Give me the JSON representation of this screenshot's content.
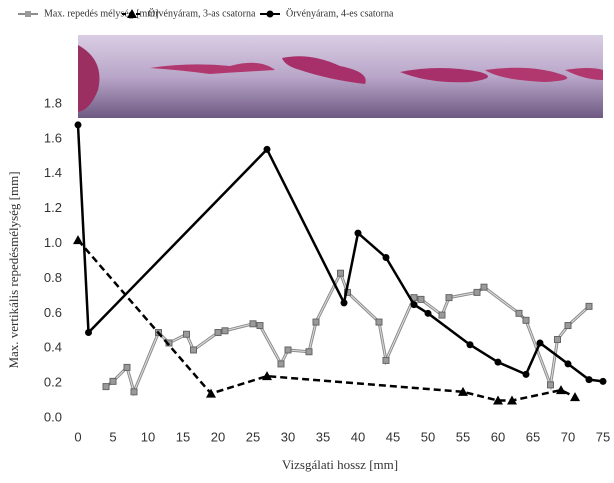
{
  "chart_data": {
    "type": "line",
    "xlabel": "Vizsgálati hossz  [mm]",
    "ylabel": "Max. vertikális repedésmélység [mm]",
    "xlim": [
      0,
      75
    ],
    "xticks": [
      0,
      5,
      10,
      15,
      20,
      25,
      30,
      35,
      40,
      45,
      50,
      55,
      60,
      65,
      70,
      75
    ],
    "ylim": [
      0,
      1.8
    ],
    "yticks": [
      {
        "value": 0,
        "label": "0.0"
      },
      0.2,
      0.4,
      0.6,
      0.8,
      {
        "value": 1,
        "label": "1.0"
      },
      1.2,
      1.4,
      1.6,
      1.8
    ],
    "series": [
      {
        "name": "Max. repedés mélység [mm]",
        "color": "#8c8c8c",
        "marker": "square",
        "dash": false,
        "x": [
          4,
          5,
          7,
          8,
          11.5,
          13,
          15.5,
          16.5,
          20,
          21,
          25,
          26,
          29,
          30,
          33,
          34,
          37.5,
          38.5,
          43,
          44,
          48,
          49,
          52,
          53,
          57,
          58,
          63,
          64,
          67.5,
          68.5,
          70,
          73
        ],
        "values": [
          0.18,
          0.21,
          0.29,
          0.15,
          0.49,
          0.43,
          0.48,
          0.39,
          0.49,
          0.5,
          0.54,
          0.53,
          0.31,
          0.39,
          0.38,
          0.55,
          0.83,
          0.72,
          0.55,
          0.33,
          0.69,
          0.68,
          0.59,
          0.69,
          0.72,
          0.75,
          0.6,
          0.56,
          0.19,
          0.45,
          0.53,
          0.64
        ]
      },
      {
        "name": "Örvényáram, 3-as csatorna",
        "color": "#000000",
        "marker": "triangle",
        "dash": true,
        "x": [
          0,
          19,
          27,
          55,
          60,
          62,
          69,
          71
        ],
        "values": [
          1.02,
          0.14,
          0.24,
          0.15,
          0.1,
          0.1,
          0.16,
          0.12
        ]
      },
      {
        "name": "Örvényáram, 4-es csatorna",
        "color": "#000000",
        "marker": "circle",
        "dash": false,
        "x": [
          0,
          1.5,
          27,
          38,
          40,
          44,
          48,
          50,
          56,
          60,
          64,
          66,
          70,
          73,
          75
        ],
        "values": [
          1.68,
          0.49,
          1.54,
          0.66,
          1.06,
          0.92,
          0.65,
          0.6,
          0.42,
          0.32,
          0.25,
          0.43,
          0.31,
          0.22,
          0.21
        ]
      }
    ]
  }
}
